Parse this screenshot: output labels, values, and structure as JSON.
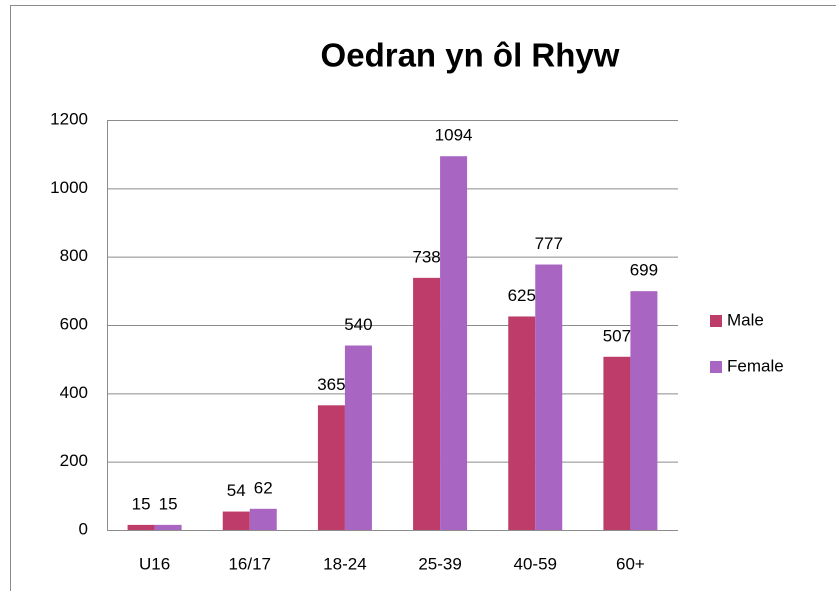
{
  "chart_data": {
    "type": "bar",
    "title": "Oedran yn ôl Rhyw",
    "categories": [
      "U16",
      "16/17",
      "18-24",
      "25-39",
      "40-59",
      "60+"
    ],
    "series": [
      {
        "name": "Male",
        "color": "#be3c69",
        "values": [
          15,
          54,
          365,
          738,
          625,
          507
        ]
      },
      {
        "name": "Female",
        "color": "#a865c1",
        "values": [
          15,
          62,
          540,
          1094,
          777,
          699
        ]
      }
    ],
    "ylim": [
      0,
      1200
    ],
    "yticks": [
      0,
      200,
      400,
      600,
      800,
      1000,
      1200
    ],
    "grid": true,
    "legend": "right"
  }
}
